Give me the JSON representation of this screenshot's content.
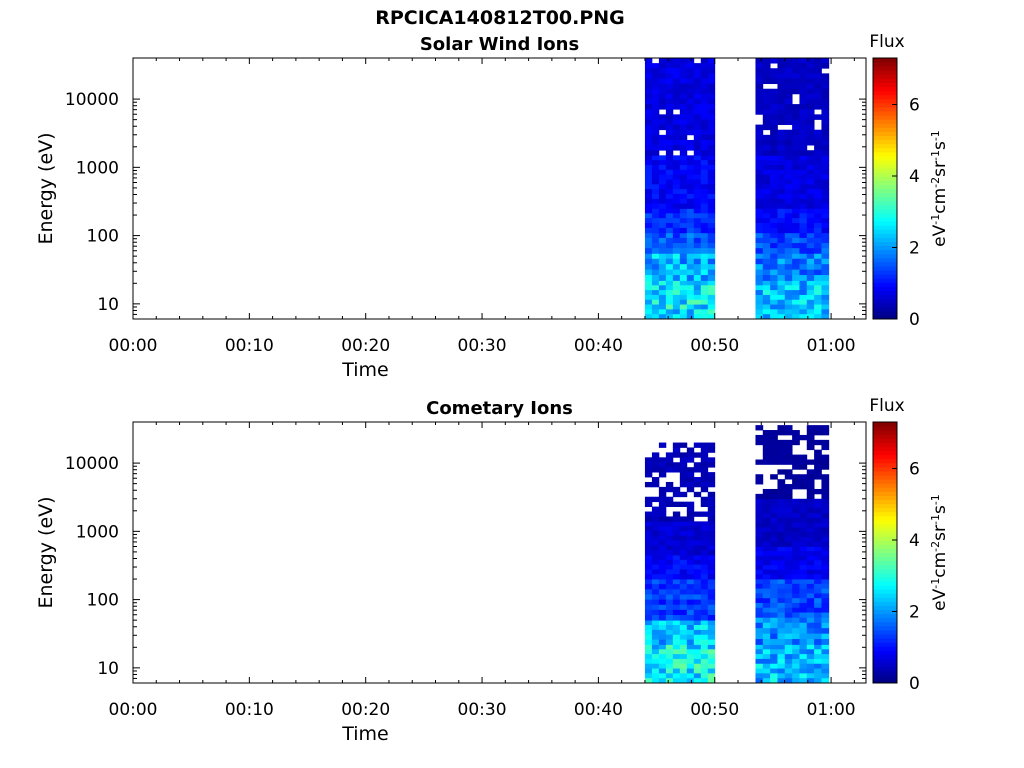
{
  "figure": {
    "title": "RPCICA140812T00.PNG"
  },
  "chart_data": [
    {
      "type": "heatmap",
      "title": "Solar Wind Ions",
      "xlabel": "Time",
      "ylabel": "Energy (eV)",
      "x_ticks": [
        "00:00",
        "00:10",
        "00:20",
        "00:30",
        "00:40",
        "00:50",
        "01:00"
      ],
      "xlim_minutes": [
        0,
        63
      ],
      "y_scale": "log",
      "y_ticks": [
        10,
        100,
        1000,
        10000
      ],
      "ylim": [
        6,
        40000
      ],
      "colorbar": {
        "title": "Flux",
        "unit": "eV⁻¹cm⁻²sr⁻¹s⁻¹",
        "ticks": [
          0,
          2,
          4,
          6
        ],
        "range": [
          0,
          7.3
        ],
        "colormap": "jet"
      },
      "data_blocks": [
        {
          "t_start_min": 44.0,
          "t_end_min": 50.0,
          "bands": [
            {
              "e_low": 6,
              "e_high": 22,
              "flux": 2.6
            },
            {
              "e_low": 22,
              "e_high": 55,
              "flux": 2.2
            },
            {
              "e_low": 55,
              "e_high": 110,
              "flux": 1.5
            },
            {
              "e_low": 110,
              "e_high": 250,
              "flux": 1.2
            },
            {
              "e_low": 250,
              "e_high": 1500,
              "flux": 0.9
            },
            {
              "e_low": 1500,
              "e_high": 40000,
              "flux": 0.7
            }
          ]
        },
        {
          "t_start_min": 53.5,
          "t_end_min": 59.8,
          "bands": [
            {
              "e_low": 6,
              "e_high": 22,
              "flux": 2.3
            },
            {
              "e_low": 22,
              "e_high": 55,
              "flux": 1.8
            },
            {
              "e_low": 55,
              "e_high": 110,
              "flux": 1.4
            },
            {
              "e_low": 110,
              "e_high": 250,
              "flux": 1.0
            },
            {
              "e_low": 250,
              "e_high": 1500,
              "flux": 0.7
            },
            {
              "e_low": 1500,
              "e_high": 40000,
              "flux": 0.5
            }
          ]
        }
      ]
    },
    {
      "type": "heatmap",
      "title": "Cometary Ions",
      "xlabel": "Time",
      "ylabel": "Energy (eV)",
      "x_ticks": [
        "00:00",
        "00:10",
        "00:20",
        "00:30",
        "00:40",
        "00:50",
        "01:00"
      ],
      "xlim_minutes": [
        0,
        63
      ],
      "y_scale": "log",
      "y_ticks": [
        10,
        100,
        1000,
        10000
      ],
      "ylim": [
        6,
        40000
      ],
      "colorbar": {
        "title": "Flux",
        "unit": "eV⁻¹cm⁻²sr⁻¹s⁻¹",
        "ticks": [
          0,
          2,
          4,
          6
        ],
        "range": [
          0,
          7.3
        ],
        "colormap": "jet"
      },
      "data_blocks": [
        {
          "t_start_min": 44.0,
          "t_end_min": 50.0,
          "bands": [
            {
              "e_low": 6,
              "e_high": 22,
              "flux": 2.7
            },
            {
              "e_low": 22,
              "e_high": 50,
              "flux": 2.3
            },
            {
              "e_low": 50,
              "e_high": 200,
              "flux": 1.3
            },
            {
              "e_low": 200,
              "e_high": 450,
              "flux": 0.9
            },
            {
              "e_low": 450,
              "e_high": 1400,
              "flux": 0.6
            },
            {
              "e_low": 1400,
              "e_high": 20000,
              "flux": 0.4
            }
          ]
        },
        {
          "t_start_min": 53.5,
          "t_end_min": 59.8,
          "bands": [
            {
              "e_low": 6,
              "e_high": 22,
              "flux": 2.3
            },
            {
              "e_low": 22,
              "e_high": 55,
              "flux": 1.9
            },
            {
              "e_low": 55,
              "e_high": 200,
              "flux": 1.4
            },
            {
              "e_low": 200,
              "e_high": 600,
              "flux": 0.8
            },
            {
              "e_low": 600,
              "e_high": 3000,
              "flux": 0.5
            },
            {
              "e_low": 3000,
              "e_high": 36000,
              "flux": 0.2
            }
          ]
        }
      ]
    }
  ]
}
